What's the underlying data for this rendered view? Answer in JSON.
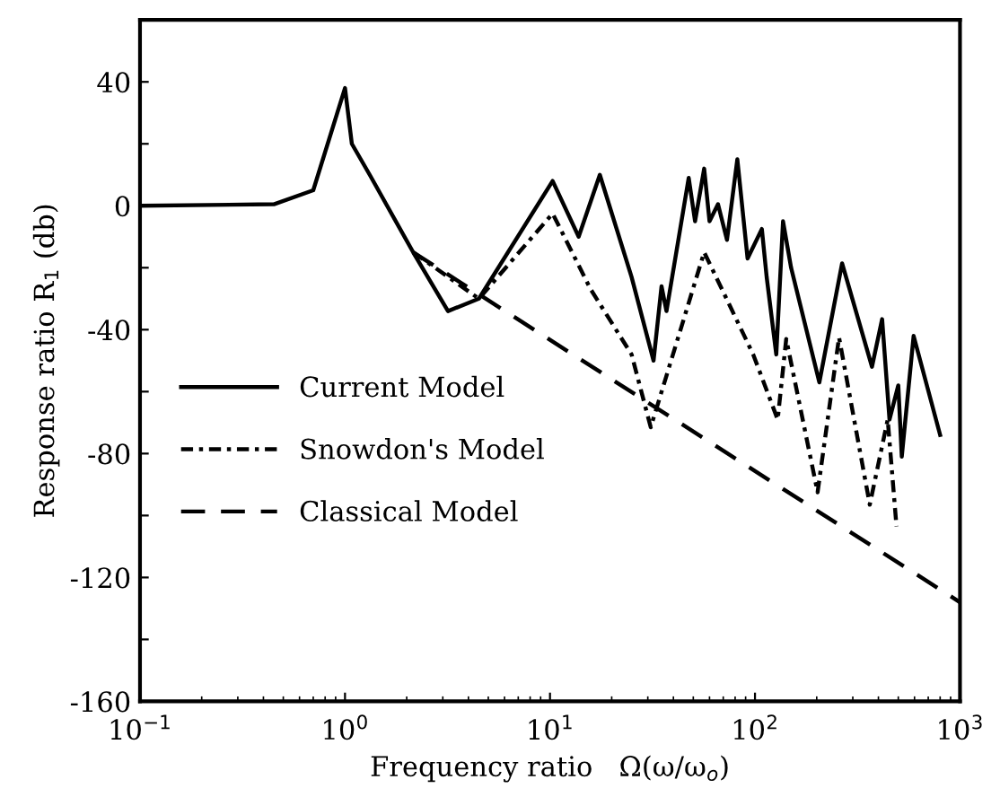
{
  "chart_data": {
    "type": "line",
    "xlabel": "Frequency ratio   Ω(ω/ω$_{o}$)",
    "ylabel": "Response ratio R$_{1}$ (db)",
    "log": "x",
    "xlim": [
      0.1,
      1000
    ],
    "ylim": [
      -160,
      60
    ],
    "xticks": [
      {
        "value": 0.1,
        "label": "10$^{−1}$"
      },
      {
        "value": 1,
        "label": "10$^{0}$"
      },
      {
        "value": 10,
        "label": "10$^{1}$"
      },
      {
        "value": 100,
        "label": "10$^{2}$"
      },
      {
        "value": 1000,
        "label": "10$^{3}$"
      }
    ],
    "yticks": [
      -160,
      {
        "value": -140,
        "label": null
      },
      -120,
      {
        "value": -100,
        "label": null
      },
      -80,
      {
        "value": -60,
        "label": null
      },
      -40,
      {
        "value": -20,
        "label": null
      },
      0,
      {
        "value": 20,
        "label": null
      },
      40
    ],
    "grid": false,
    "legend": "lower left",
    "marker": "none",
    "series": [
      {
        "name": "Current Model",
        "color": "#000000",
        "line_style": "solid",
        "x": [
          0.1,
          0.45,
          0.7,
          1.0,
          1.08,
          1.32,
          2.15,
          3.18,
          4.5,
          10.3,
          13.8,
          17.5,
          25,
          32,
          35,
          37,
          47.5,
          51,
          56.5,
          60,
          66,
          73,
          82,
          92,
          108,
          114,
          127,
          137,
          150,
          206,
          266,
          372,
          417,
          453,
          500,
          520,
          594,
          800
        ],
        "values": [
          0,
          0.5,
          5,
          38,
          20,
          10,
          -15,
          -34,
          -30,
          8,
          -10,
          10,
          -23,
          -50,
          -26,
          -34,
          9,
          -5,
          12,
          -5,
          0.5,
          -11,
          15,
          -17,
          -7.5,
          -23,
          -48,
          -5,
          -20,
          -57,
          -18.6,
          -52,
          -36.6,
          -69,
          -58,
          -81,
          -42,
          -74
        ]
      },
      {
        "name": "Snowdon's Model",
        "color": "#000000",
        "line_style": "dashdot",
        "x": [
          2.15,
          4.5,
          10.3,
          15.8,
          25,
          31,
          56.5,
          98,
          129,
          142,
          202,
          257,
          363,
          444,
          490
        ],
        "values": [
          -15,
          -30,
          -2.5,
          -27,
          -48,
          -71.5,
          -15,
          -48,
          -69,
          -43,
          -92.5,
          -42.5,
          -96.5,
          -69,
          -103.5
        ]
      },
      {
        "name": "Classical Model",
        "color": "#000000",
        "line_style": "dashed",
        "x": [
          2.15,
          1000
        ],
        "values": [
          -15,
          -128
        ]
      }
    ]
  }
}
